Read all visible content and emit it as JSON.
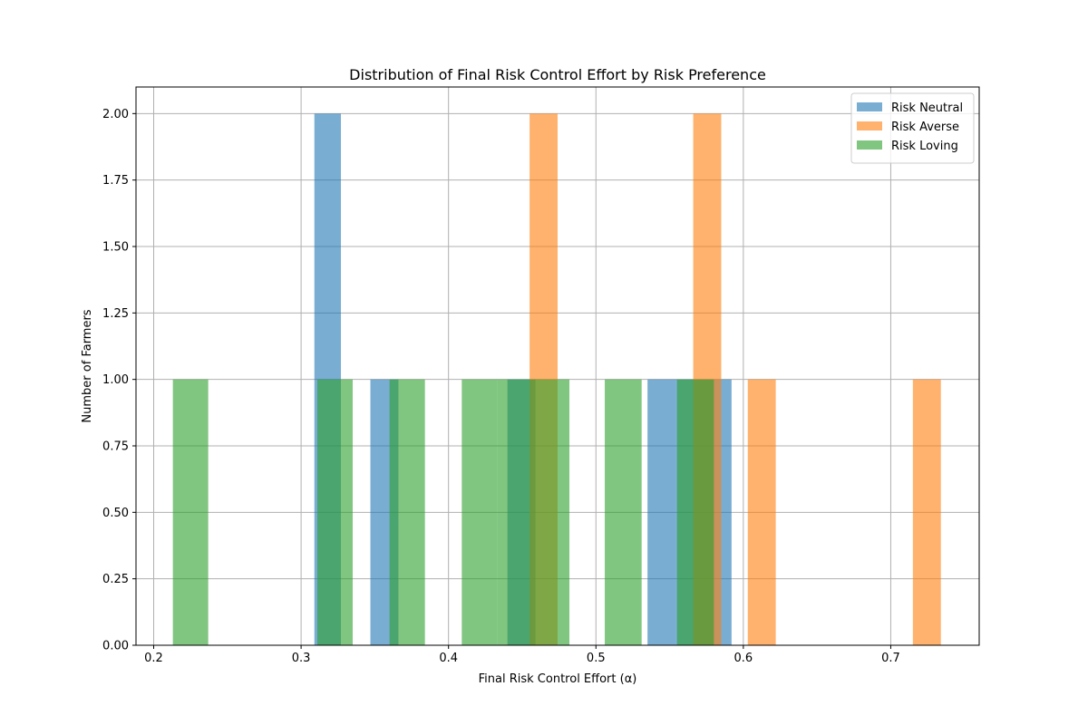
{
  "chart_data": {
    "type": "bar",
    "title": "Distribution of Final Risk Control Effort by Risk Preference",
    "xlabel": "Final Risk Control Effort (α)",
    "ylabel": "Number of Farmers",
    "xlim": [
      0.188,
      0.76
    ],
    "ylim": [
      0,
      2.1
    ],
    "xticks": [
      0.2,
      0.3,
      0.4,
      0.5,
      0.6,
      0.7
    ],
    "xtick_labels": [
      "0.2",
      "0.3",
      "0.4",
      "0.5",
      "0.6",
      "0.7"
    ],
    "yticks": [
      0,
      0.25,
      0.5,
      0.75,
      1.0,
      1.25,
      1.5,
      1.75,
      2.0
    ],
    "ytick_labels": [
      "0.00",
      "0.25",
      "0.50",
      "0.75",
      "1.00",
      "1.25",
      "1.50",
      "1.75",
      "2.00"
    ],
    "grid": true,
    "legend_position": "top-right",
    "series": [
      {
        "name": "Risk Neutral",
        "color": "#1f77b4",
        "bins": [
          {
            "x0": 0.309,
            "x1": 0.327,
            "count": 2
          },
          {
            "x0": 0.347,
            "x1": 0.366,
            "count": 1
          },
          {
            "x0": 0.44,
            "x1": 0.459,
            "count": 1
          },
          {
            "x0": 0.535,
            "x1": 0.554,
            "count": 1
          },
          {
            "x0": 0.554,
            "x1": 0.573,
            "count": 1
          },
          {
            "x0": 0.573,
            "x1": 0.592,
            "count": 1
          }
        ]
      },
      {
        "name": "Risk Averse",
        "color": "#ff7f0e",
        "bins": [
          {
            "x0": 0.455,
            "x1": 0.474,
            "count": 2
          },
          {
            "x0": 0.566,
            "x1": 0.585,
            "count": 2
          },
          {
            "x0": 0.603,
            "x1": 0.622,
            "count": 1
          },
          {
            "x0": 0.715,
            "x1": 0.734,
            "count": 1
          }
        ]
      },
      {
        "name": "Risk Loving",
        "color": "#2ca02c",
        "bins": [
          {
            "x0": 0.213,
            "x1": 0.237,
            "count": 1
          },
          {
            "x0": 0.311,
            "x1": 0.335,
            "count": 1
          },
          {
            "x0": 0.36,
            "x1": 0.384,
            "count": 1
          },
          {
            "x0": 0.409,
            "x1": 0.433,
            "count": 1
          },
          {
            "x0": 0.433,
            "x1": 0.457,
            "count": 1
          },
          {
            "x0": 0.457,
            "x1": 0.482,
            "count": 1
          },
          {
            "x0": 0.506,
            "x1": 0.531,
            "count": 1
          },
          {
            "x0": 0.555,
            "x1": 0.58,
            "count": 1
          }
        ]
      }
    ]
  }
}
